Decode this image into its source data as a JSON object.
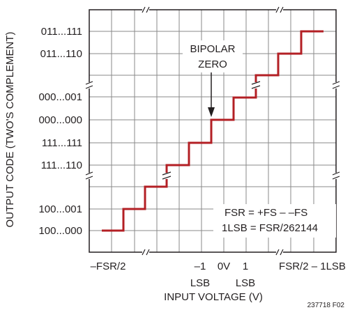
{
  "diagram": {
    "y_axis_label": "OUTPUT CODE (TWO'S COMPLEMENT)",
    "x_axis_label": "INPUT VOLTAGE (V)",
    "y_codes": [
      "011...111",
      "011...110",
      "000...001",
      "000...000",
      "111...111",
      "111...110",
      "100...001",
      "100...000"
    ],
    "x_labels": {
      "neg_fsr_half": "–FSR/2",
      "minus_one": "–1",
      "minus_one_unit": "LSB",
      "zero": "0V",
      "plus_one": "1",
      "plus_one_unit": "LSB",
      "fsr_half_minus": "FSR/2 – 1LSB"
    },
    "annotation": {
      "line1": "BIPOLAR",
      "line2": "ZERO"
    },
    "formula": {
      "line1": "FSR = +FS – –FS",
      "line2": "1LSB = FSR/262144"
    },
    "figure_id": "237718 F02",
    "colors": {
      "staircase": "#b31f24",
      "grid": "#8a8a8a",
      "frame": "#231f20"
    }
  }
}
